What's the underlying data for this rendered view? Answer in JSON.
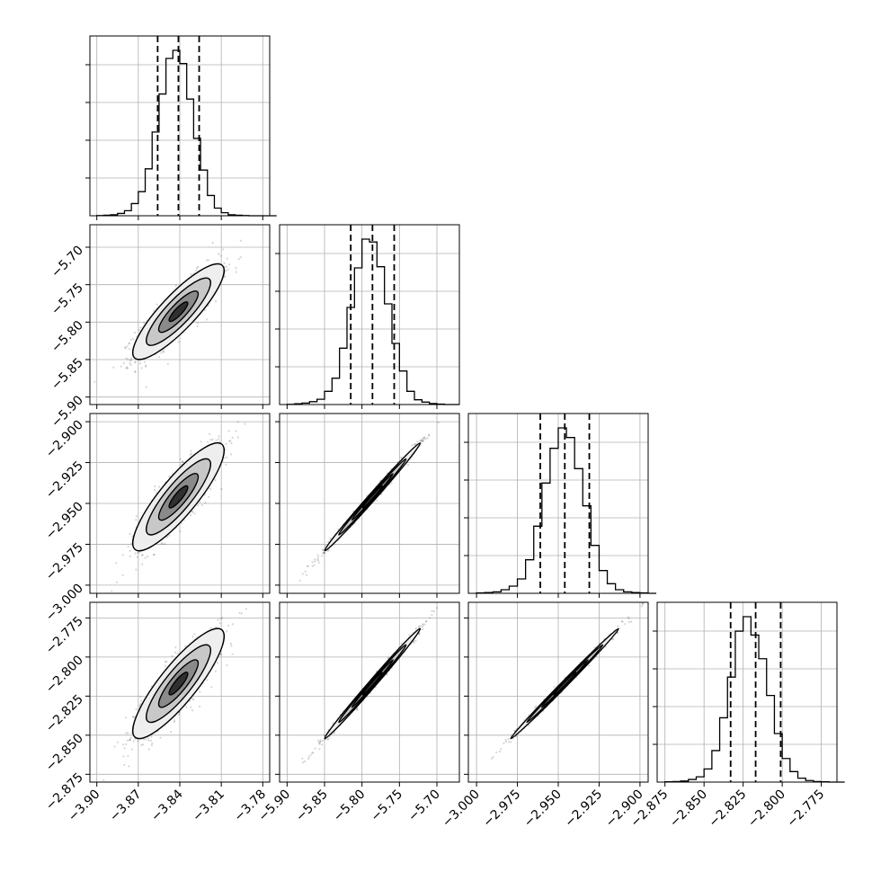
{
  "chart_data": {
    "type": "corner",
    "style": {
      "grid": true,
      "colors": {
        "line": "#000000",
        "grid": "#b0b0b0",
        "background": "#ffffff",
        "fill_levels": [
          "#eeeeee",
          "#c8c8c8",
          "#8a8a8a",
          "#303030"
        ]
      }
    },
    "parameters": [
      {
        "index": 0,
        "median": -3.841,
        "quantiles": [
          -3.856,
          -3.841,
          -3.826
        ],
        "range": [
          -3.905,
          -3.775
        ],
        "ticks": [
          -3.9,
          -3.87,
          -3.84,
          -3.81,
          -3.78
        ],
        "tick_labels": [
          "−3.90",
          "−3.87",
          "−3.84",
          "−3.81",
          "−3.78"
        ]
      },
      {
        "index": 1,
        "median": -5.786,
        "quantiles": [
          -5.815,
          -5.786,
          -5.757
        ],
        "range": [
          -5.91,
          -5.67
        ],
        "ticks": [
          -5.9,
          -5.85,
          -5.8,
          -5.75,
          -5.7
        ],
        "tick_labels": [
          "−5.90",
          "−5.85",
          "−5.80",
          "−5.75",
          "−5.70"
        ]
      },
      {
        "index": 2,
        "median": -2.946,
        "quantiles": [
          -2.961,
          -2.946,
          -2.931
        ],
        "range": [
          -3.005,
          -2.895
        ],
        "ticks": [
          -3.0,
          -2.975,
          -2.95,
          -2.925,
          -2.9
        ],
        "tick_labels": [
          "−3.000",
          "−2.975",
          "−2.950",
          "−2.925",
          "−2.900"
        ]
      },
      {
        "index": 3,
        "median": -2.817,
        "quantiles": [
          -2.833,
          -2.817,
          -2.801
        ],
        "range": [
          -2.88,
          -2.765
        ],
        "ticks": [
          -2.875,
          -2.85,
          -2.825,
          -2.8,
          -2.775
        ],
        "tick_labels": [
          "−2.875",
          "−2.850",
          "−2.825",
          "−2.800",
          "−2.775"
        ]
      }
    ],
    "histograms": [
      {
        "param": 0,
        "bin_start": -3.9,
        "bin_width": 0.005,
        "counts": [
          1,
          2,
          4,
          9,
          20,
          48,
          95,
          185,
          330,
          480,
          620,
          652,
          600,
          460,
          305,
          180,
          80,
          30,
          12,
          4,
          2,
          1,
          0,
          0,
          0,
          0
        ]
      },
      {
        "param": 1,
        "bin_start": -5.9,
        "bin_width": 0.01,
        "counts": [
          1,
          3,
          6,
          12,
          22,
          55,
          110,
          235,
          405,
          570,
          690,
          678,
          575,
          420,
          255,
          140,
          55,
          20,
          10,
          4,
          2,
          0,
          0
        ]
      },
      {
        "param": 2,
        "bin_start": -3.0,
        "bin_width": 0.005,
        "counts": [
          2,
          3,
          6,
          15,
          30,
          60,
          140,
          280,
          460,
          605,
          690,
          650,
          520,
          365,
          200,
          95,
          40,
          15,
          6,
          3,
          2,
          0
        ]
      },
      {
        "param": 3,
        "bin_start": -2.875,
        "bin_width": 0.005,
        "counts": [
          1,
          2,
          4,
          10,
          20,
          50,
          120,
          245,
          400,
          575,
          630,
          560,
          470,
          330,
          185,
          90,
          40,
          15,
          6,
          2,
          1,
          0,
          0
        ]
      }
    ],
    "pairs": [
      {
        "x": 0,
        "y": 1,
        "correlation": 0.86
      },
      {
        "x": 0,
        "y": 2,
        "correlation": 0.86
      },
      {
        "x": 1,
        "y": 2,
        "correlation": 0.995
      },
      {
        "x": 0,
        "y": 3,
        "correlation": 0.86
      },
      {
        "x": 1,
        "y": 3,
        "correlation": 0.995
      },
      {
        "x": 2,
        "y": 3,
        "correlation": 0.997
      }
    ]
  }
}
